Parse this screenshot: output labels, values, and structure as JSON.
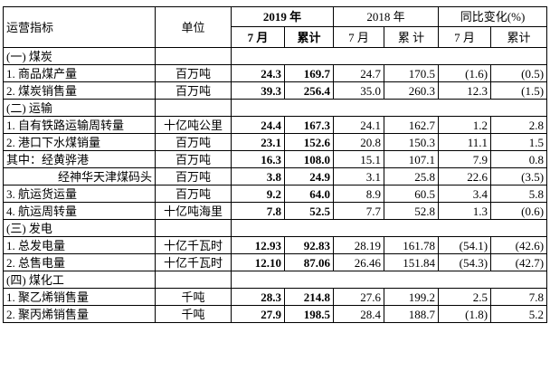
{
  "header": {
    "indicator": "运营指标",
    "unit": "单位",
    "year_current": "2019 年",
    "year_previous": "2018 年",
    "yoy": "同比变化(%)",
    "sub_month": "7 月",
    "sub_cumulative": "累计",
    "sub_month_2018": "7 月",
    "sub_cumulative_2018": "累 计",
    "sub_month_yoy": "7 月",
    "sub_cumulative_yoy": "累计"
  },
  "sections": [
    {
      "title": "(一) 煤炭",
      "rows": [
        {
          "label": "1. 商品煤产量",
          "unit": "百万吨",
          "m2019": "24.3",
          "c2019": "169.7",
          "m2018": "24.7",
          "c2018": "170.5",
          "myoy": "(1.6)",
          "cyoy": "(0.5)"
        },
        {
          "label": "2. 煤炭销售量",
          "unit": "百万吨",
          "m2019": "39.3",
          "c2019": "256.4",
          "m2018": "35.0",
          "c2018": "260.3",
          "myoy": "12.3",
          "cyoy": "(1.5)"
        }
      ]
    },
    {
      "title": "(二) 运输",
      "rows": [
        {
          "label": "1. 自有铁路运输周转量",
          "unit": "十亿吨公里",
          "m2019": "24.4",
          "c2019": "167.3",
          "m2018": "24.1",
          "c2018": "162.7",
          "myoy": "1.2",
          "cyoy": "2.8"
        },
        {
          "label": "2. 港口下水煤销量",
          "unit": "百万吨",
          "m2019": "23.1",
          "c2019": "152.6",
          "m2018": "20.8",
          "c2018": "150.3",
          "myoy": "11.1",
          "cyoy": "1.5"
        },
        {
          "label": "其中：经黄骅港",
          "unit": "百万吨",
          "m2019": "16.3",
          "c2019": "108.0",
          "m2018": "15.1",
          "c2018": "107.1",
          "myoy": "7.9",
          "cyoy": "0.8"
        },
        {
          "label": "经神华天津煤码头",
          "unit": "百万吨",
          "m2019": "3.8",
          "c2019": "24.9",
          "m2018": "3.1",
          "c2018": "25.8",
          "myoy": "22.6",
          "cyoy": "(3.5)",
          "indent": true
        },
        {
          "label": "3. 航运货运量",
          "unit": "百万吨",
          "m2019": "9.2",
          "c2019": "64.0",
          "m2018": "8.9",
          "c2018": "60.5",
          "myoy": "3.4",
          "cyoy": "5.8"
        },
        {
          "label": "4. 航运周转量",
          "unit": "十亿吨海里",
          "m2019": "7.8",
          "c2019": "52.5",
          "m2018": "7.7",
          "c2018": "52.8",
          "myoy": "1.3",
          "cyoy": "(0.6)"
        }
      ]
    },
    {
      "title": "(三) 发电",
      "rows": [
        {
          "label": "1. 总发电量",
          "unit": "十亿千瓦时",
          "m2019": "12.93",
          "c2019": "92.83",
          "m2018": "28.19",
          "c2018": "161.78",
          "myoy": "(54.1)",
          "cyoy": "(42.6)"
        },
        {
          "label": "2. 总售电量",
          "unit": "十亿千瓦时",
          "m2019": "12.10",
          "c2019": "87.06",
          "m2018": "26.46",
          "c2018": "151.84",
          "myoy": "(54.3)",
          "cyoy": "(42.7)"
        }
      ]
    },
    {
      "title": "(四) 煤化工",
      "rows": [
        {
          "label": "1. 聚乙烯销售量",
          "unit": "千吨",
          "m2019": "28.3",
          "c2019": "214.8",
          "m2018": "27.6",
          "c2018": "199.2",
          "myoy": "2.5",
          "cyoy": "7.8"
        },
        {
          "label": "2. 聚丙烯销售量",
          "unit": "千吨",
          "m2019": "27.9",
          "c2019": "198.5",
          "m2018": "28.4",
          "c2018": "188.7",
          "myoy": "(1.8)",
          "cyoy": "5.2"
        }
      ]
    }
  ]
}
